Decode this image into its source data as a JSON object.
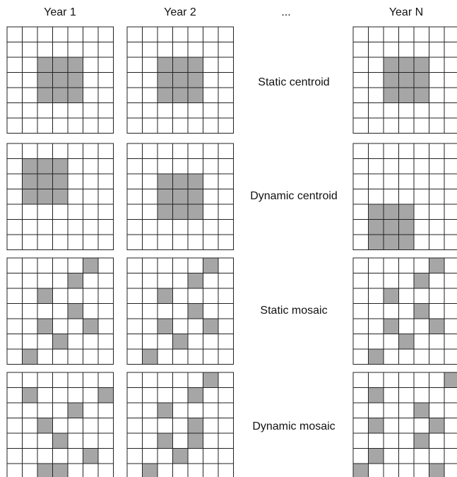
{
  "header": {
    "columns": [
      "Year 1",
      "Year 2",
      "...",
      "Year N"
    ]
  },
  "rows": [
    {
      "label": "Static centroid"
    },
    {
      "label": "Dynamic centroid"
    },
    {
      "label": "Static mosaic"
    },
    {
      "label": "Dynamic mosaic"
    }
  ]
}
